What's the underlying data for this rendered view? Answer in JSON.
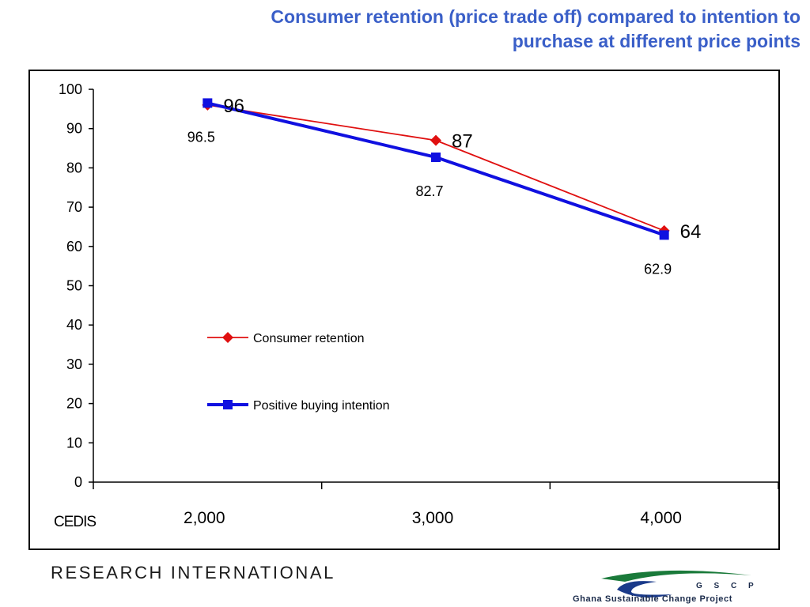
{
  "title": {
    "line1": "Consumer retention (price trade off) compared to intention to",
    "line2": "purchase at different price points"
  },
  "chart_data": {
    "type": "line",
    "xlabel": "CEDIS",
    "categories": [
      "2,000",
      "3,000",
      "4,000"
    ],
    "ylim": [
      0,
      100
    ],
    "yticks": [
      "0",
      "10",
      "20",
      "30",
      "40",
      "50",
      "60",
      "70",
      "80",
      "90",
      "100"
    ],
    "grid": false,
    "legend_position": "center-left",
    "series": [
      {
        "name": "Consumer retention",
        "values": [
          96.0,
          87.0,
          64.0
        ],
        "labels": [
          "96",
          "87",
          "64"
        ],
        "color": "#e01010",
        "marker": "diamond"
      },
      {
        "name": "Positive buying intention",
        "values": [
          96.5,
          82.7,
          62.9
        ],
        "labels": [
          "96.5",
          "82.7",
          "62.9"
        ],
        "color": "#1010e0",
        "marker": "square"
      }
    ]
  },
  "footer": {
    "brand": "RESEARCH INTERNATIONAL",
    "logo_acronym": "G S C P",
    "logo_name": "Ghana Sustainable Change Project",
    "logo_colors": [
      "#1a7a3a",
      "#1a3a8a"
    ]
  }
}
